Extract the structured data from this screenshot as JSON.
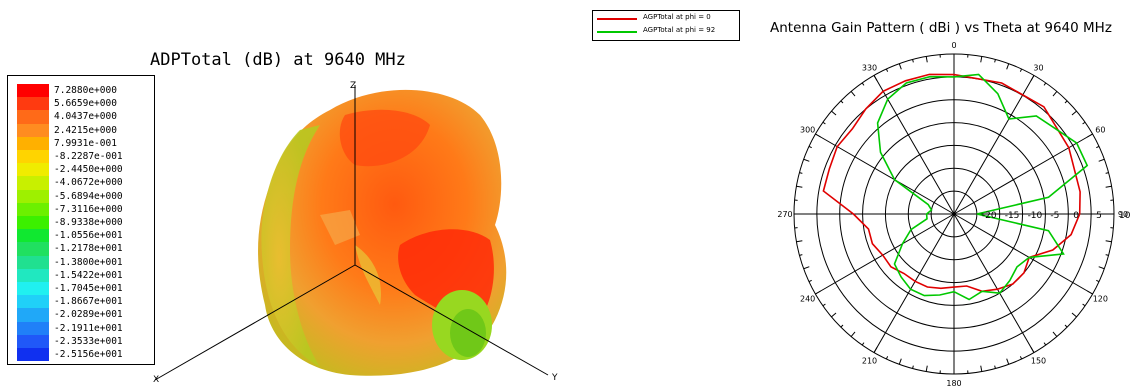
{
  "left_panel": {
    "title": "ADPTotal (dB) at 9640 MHz",
    "legend_values": [
      "7.2880e+000",
      "5.6659e+000",
      "4.0437e+000",
      "2.4215e+000",
      "7.9931e-001",
      "-8.2287e-001",
      "-2.4450e+000",
      "-4.0672e+000",
      "-5.6894e+000",
      "-7.3116e+000",
      "-8.9338e+000",
      "-1.0556e+001",
      "-1.2178e+001",
      "-1.3800e+001",
      "-1.5422e+001",
      "-1.7045e+001",
      "-1.8667e+001",
      "-2.0289e+001",
      "-2.1911e+001",
      "-2.3533e+001",
      "-2.5156e+001"
    ],
    "legend_colors": [
      "#ff0000",
      "#ff3a10",
      "#ff6a18",
      "#ff8c20",
      "#ffb000",
      "#ffd400",
      "#f0ec00",
      "#c8f000",
      "#9ef000",
      "#6cf000",
      "#3cf000",
      "#10e830",
      "#20e060",
      "#20e090",
      "#20e8c0",
      "#20f0f0",
      "#20d0f8",
      "#20a8f8",
      "#2080f8",
      "#2058f8",
      "#1030f0"
    ],
    "axes": {
      "z": "Z",
      "x": "X",
      "y": "Y"
    }
  },
  "right_panel": {
    "title": "Antenna Gain Pattern ( dBi )  vs Theta at 9640 MHz",
    "legend": [
      {
        "label": "AGPTotal at phi = 0",
        "color": "#e00000"
      },
      {
        "label": "AGPTotal at phi = 92",
        "color": "#00c800"
      }
    ]
  },
  "chart_data": {
    "type": "polar",
    "title": "Antenna Gain Pattern ( dBi )  vs Theta at 9640 MHz",
    "angle_ticks": [
      "0",
      "30",
      "60",
      "90",
      "120",
      "150",
      "180",
      "210",
      "240",
      "270",
      "300",
      "330"
    ],
    "radial_ticks": [
      "-20",
      "-15",
      "-10",
      "-5",
      "0",
      "5",
      "10"
    ],
    "rlim": [
      -25,
      10
    ],
    "series": [
      {
        "name": "AGPTotal at phi = 0",
        "color": "#e00000",
        "theta": [
          0,
          20,
          40,
          60,
          80,
          90,
          100,
          110,
          120,
          130,
          140,
          150,
          160,
          170,
          180,
          190,
          200,
          210,
          220,
          230,
          240,
          250,
          260,
          270,
          280,
          290,
          300,
          310,
          320,
          330,
          340,
          350
        ],
        "gain": [
          5.5,
          5.5,
          5.6,
          4.0,
          3.0,
          2.5,
          1.0,
          -2.0,
          -6.0,
          -5.0,
          -5.0,
          -6.0,
          -7.0,
          -9.0,
          -9.0,
          -8.5,
          -8.0,
          -8.0,
          -8.0,
          -7.0,
          -7.0,
          -6.0,
          -6.0,
          -3.0,
          4.0,
          4.0,
          4.5,
          4.0,
          5.0,
          6.0,
          6.0,
          6.0
        ]
      },
      {
        "name": "AGPTotal at phi = 92",
        "color": "#00c800",
        "theta": [
          0,
          10,
          20,
          30,
          40,
          50,
          60,
          70,
          80,
          90,
          100,
          110,
          120,
          130,
          140,
          150,
          160,
          170,
          180,
          190,
          200,
          210,
          220,
          230,
          240,
          250,
          260,
          270,
          280,
          290,
          300,
          310,
          320,
          330,
          340,
          350
        ],
        "gain": [
          5.0,
          6.0,
          3.0,
          -1.0,
          3.0,
          4.0,
          6.0,
          6.0,
          -4.0,
          -20.0,
          -4.0,
          0.5,
          -6.0,
          -7.0,
          -6.0,
          -5.0,
          -7.0,
          -6.0,
          -8.0,
          -7.0,
          -6.0,
          -6.0,
          -7.0,
          -8.0,
          -12.0,
          -15.0,
          -19.0,
          -19.0,
          -20.0,
          -19.0,
          -10.0,
          -4.0,
          1.0,
          4.0,
          5.5,
          5.5
        ]
      }
    ]
  }
}
